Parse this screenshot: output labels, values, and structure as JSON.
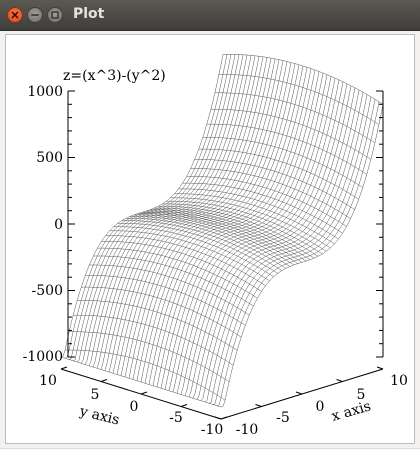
{
  "window": {
    "title": "Plot",
    "buttons": {
      "close_icon": "close-icon",
      "minimize_icon": "minimize-icon",
      "maximize_icon": "maximize-icon"
    },
    "close_color": "#e95420"
  },
  "plot": {
    "title": "z=(x^3)-(y^2)",
    "z_ticks": [
      "1000",
      "500",
      "0",
      "-500",
      "-1000"
    ],
    "y_axis_label": "y axis",
    "y_ticks": [
      "10",
      "5",
      "0",
      "-5",
      "-10"
    ],
    "x_axis_label": "x axis",
    "x_ticks": [
      "-10",
      "-5",
      "0",
      "5",
      "10"
    ]
  },
  "chart_data": {
    "type": "surface",
    "function": "z=(x^3)-(y^2)",
    "x_range": [
      -10,
      10
    ],
    "y_range": [
      -10,
      10
    ],
    "z_range": [
      -1000,
      1000
    ],
    "grid_lines": 40
  }
}
